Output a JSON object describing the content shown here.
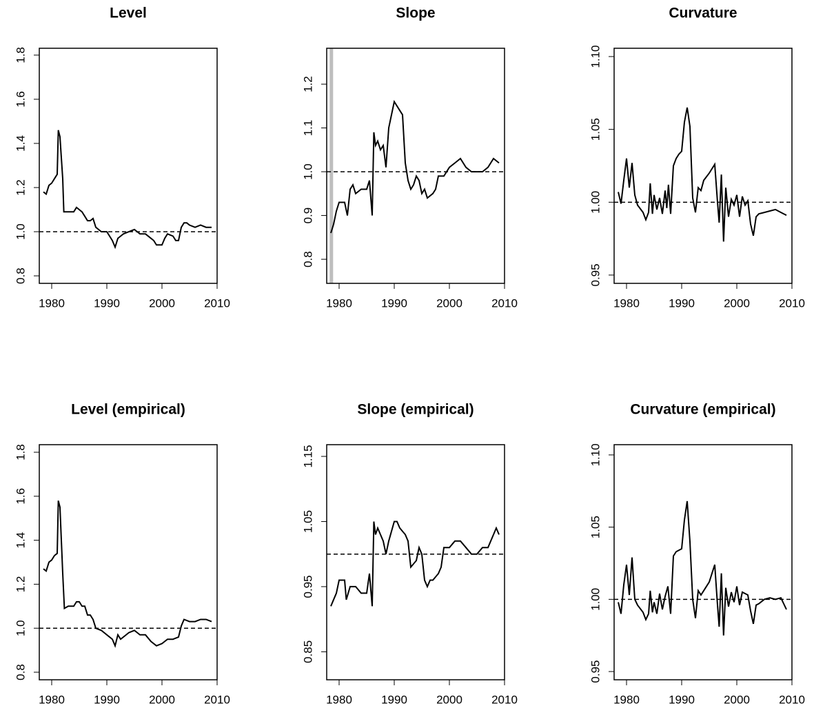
{
  "chart_data": [
    {
      "type": "line",
      "title": "Level",
      "color": "#000000",
      "x": [
        1978.5,
        1979,
        1979.5,
        1980,
        1980.5,
        1981,
        1981.2,
        1981.5,
        1982,
        1982.2,
        1983,
        1984,
        1984.5,
        1985,
        1985.5,
        1986,
        1986.5,
        1987,
        1987.5,
        1988,
        1988.5,
        1989,
        1990,
        1990.5,
        1991,
        1991.5,
        1992,
        1992.5,
        1993,
        1994,
        1995,
        1996,
        1997,
        1998,
        1998.5,
        1999,
        2000,
        2000.5,
        2001,
        2002,
        2002.5,
        2003,
        2003.5,
        2004,
        2004.5,
        2005,
        2006,
        2007,
        2008,
        2009
      ],
      "values": [
        1.18,
        1.17,
        1.21,
        1.22,
        1.24,
        1.26,
        1.46,
        1.43,
        1.24,
        1.09,
        1.09,
        1.09,
        1.11,
        1.1,
        1.09,
        1.07,
        1.05,
        1.05,
        1.06,
        1.02,
        1.01,
        1.0,
        1.0,
        0.98,
        0.96,
        0.93,
        0.97,
        0.98,
        0.99,
        1.0,
        1.01,
        0.99,
        0.99,
        0.97,
        0.96,
        0.94,
        0.94,
        0.97,
        0.99,
        0.98,
        0.96,
        0.96,
        1.02,
        1.04,
        1.04,
        1.03,
        1.02,
        1.03,
        1.02,
        1.02
      ],
      "hlines": [
        1
      ],
      "xlim": [
        1977.75,
        2010
      ],
      "xticks": [
        1980,
        1990,
        2000,
        2010
      ],
      "ylim": [
        0.766,
        1.831
      ],
      "yticks": [
        0.8,
        {
          "value": 1,
          "label": "1.0"
        },
        1.2,
        1.4,
        1.6,
        1.8
      ]
    },
    {
      "type": "line",
      "title": "Slope",
      "color": "#000000",
      "x": [
        1978.5,
        1979,
        1979.5,
        1980,
        1981,
        1981.5,
        1982,
        1982.5,
        1983,
        1984,
        1985,
        1985.5,
        1986,
        1986.3,
        1986.6,
        1987,
        1987.5,
        1988,
        1988.5,
        1989,
        1989.5,
        1990,
        1990.5,
        1991,
        1991.5,
        1992,
        1992.5,
        1993,
        1993.5,
        1994,
        1994.5,
        1995,
        1995.5,
        1996,
        1997,
        1997.5,
        1998,
        1999,
        2000,
        2001,
        2002,
        2003,
        2004,
        2005,
        2006,
        2007,
        2008,
        2009
      ],
      "values": [
        0.86,
        0.88,
        0.91,
        0.93,
        0.93,
        0.9,
        0.96,
        0.97,
        0.95,
        0.96,
        0.96,
        0.98,
        0.9,
        1.09,
        1.06,
        1.07,
        1.05,
        1.06,
        1.01,
        1.1,
        1.13,
        1.16,
        1.15,
        1.14,
        1.13,
        1.02,
        0.98,
        0.96,
        0.97,
        0.99,
        0.98,
        0.95,
        0.96,
        0.94,
        0.95,
        0.96,
        0.99,
        0.99,
        1.01,
        1.02,
        1.03,
        1.01,
        1.0,
        1.0,
        1.0,
        1.01,
        1.03,
        1.02
      ],
      "hlines": [
        1
      ],
      "vlines": [
        {
          "x": 1978.6,
          "color": "#bebebe"
        }
      ],
      "xlim": [
        1977.75,
        2010
      ],
      "xticks": [
        1980,
        1990,
        2000,
        2010
      ],
      "ylim": [
        0.745,
        1.282
      ],
      "yticks": [
        0.8,
        0.9,
        {
          "value": 1,
          "label": "1.0"
        },
        1.1,
        1.2
      ]
    },
    {
      "type": "line",
      "title": "Curvature",
      "color": "#000000",
      "x": [
        1978.5,
        1979,
        1979.5,
        1980,
        1980.5,
        1981,
        1981.5,
        1982,
        1983,
        1983.5,
        1984,
        1984.3,
        1984.7,
        1985,
        1985.5,
        1986,
        1986.5,
        1987,
        1987.3,
        1987.6,
        1988,
        1988.5,
        1989,
        1989.5,
        1990,
        1990.5,
        1991,
        1991.5,
        1992,
        1992.5,
        1993,
        1993.5,
        1994,
        1995,
        1996,
        1996.5,
        1996.8,
        1997.2,
        1997.6,
        1998,
        1998.5,
        1999,
        1999.5,
        2000,
        2000.5,
        2001,
        2001.5,
        2002,
        2002.5,
        2003,
        2003.5,
        2004,
        2005,
        2006,
        2007,
        2008,
        2009
      ],
      "values": [
        1.007,
        0.999,
        1.015,
        1.03,
        1.01,
        1.027,
        1.005,
        0.998,
        0.993,
        0.988,
        0.993,
        1.013,
        0.992,
        1.005,
        0.995,
        1.003,
        0.992,
        1.008,
        0.996,
        1.012,
        0.992,
        1.025,
        1.03,
        1.033,
        1.035,
        1.055,
        1.065,
        1.052,
        1.003,
        0.993,
        1.01,
        1.008,
        1.015,
        1.02,
        1.026,
        1.0,
        0.986,
        1.019,
        0.973,
        1.01,
        0.99,
        1.002,
        0.998,
        1.005,
        0.99,
        1.004,
        0.998,
        1.001,
        0.985,
        0.977,
        0.99,
        0.992,
        0.993,
        0.994,
        0.995,
        0.993,
        0.991
      ],
      "hlines": [
        1
      ],
      "xlim": [
        1977.75,
        2010
      ],
      "xticks": [
        1980,
        1990,
        2000,
        2010
      ],
      "ylim": [
        0.9443,
        1.1057
      ],
      "yticks": [
        0.95,
        {
          "value": 1,
          "label": "1.00"
        },
        1.05,
        {
          "value": 1.1,
          "label": "1.10"
        }
      ]
    },
    {
      "type": "line",
      "title": "Level (empirical)",
      "color": "#000000",
      "x": [
        1978.5,
        1979,
        1979.5,
        1980,
        1980.5,
        1981,
        1981.2,
        1981.5,
        1982,
        1982.3,
        1983,
        1984,
        1984.5,
        1985,
        1985.5,
        1986,
        1986.5,
        1987,
        1987.5,
        1988,
        1989,
        1990,
        1991,
        1991.5,
        1992,
        1992.5,
        1993,
        1994,
        1995,
        1996,
        1997,
        1998,
        1999,
        2000,
        2001,
        2002,
        2003,
        2003.5,
        2004,
        2005,
        2006,
        2007,
        2008,
        2009
      ],
      "values": [
        1.27,
        1.26,
        1.3,
        1.31,
        1.33,
        1.34,
        1.58,
        1.55,
        1.25,
        1.09,
        1.1,
        1.1,
        1.12,
        1.12,
        1.1,
        1.1,
        1.06,
        1.06,
        1.04,
        1.0,
        0.99,
        0.97,
        0.95,
        0.92,
        0.97,
        0.95,
        0.96,
        0.98,
        0.99,
        0.97,
        0.97,
        0.94,
        0.92,
        0.93,
        0.95,
        0.95,
        0.96,
        1.01,
        1.04,
        1.03,
        1.03,
        1.04,
        1.04,
        1.03
      ],
      "hlines": [
        1
      ],
      "xlim": [
        1977.75,
        2010
      ],
      "xticks": [
        1980,
        1990,
        2000,
        2010
      ],
      "ylim": [
        0.7656,
        1.8344
      ],
      "yticks": [
        0.8,
        {
          "value": 1,
          "label": "1.0"
        },
        1.2,
        1.4,
        1.6,
        1.8
      ]
    },
    {
      "type": "line",
      "title": "Slope (empirical)",
      "color": "#000000",
      "x": [
        1978.5,
        1979,
        1979.5,
        1980,
        1981,
        1981.3,
        1982,
        1983,
        1984,
        1985,
        1985.5,
        1986,
        1986.3,
        1986.6,
        1987,
        1987.5,
        1988,
        1988.5,
        1989,
        1990,
        1990.5,
        1991,
        1992,
        1992.5,
        1993,
        1994,
        1994.5,
        1995,
        1995.5,
        1996,
        1996.5,
        1997,
        1998,
        1998.5,
        1999,
        2000,
        2001,
        2002,
        2003,
        2004,
        2005,
        2006,
        2007,
        2008,
        2008.5,
        2009
      ],
      "values": [
        0.92,
        0.93,
        0.94,
        0.96,
        0.96,
        0.93,
        0.95,
        0.95,
        0.94,
        0.94,
        0.97,
        0.92,
        1.05,
        1.03,
        1.04,
        1.03,
        1.02,
        1.0,
        1.02,
        1.05,
        1.05,
        1.04,
        1.03,
        1.02,
        0.98,
        0.99,
        1.01,
        1.0,
        0.96,
        0.95,
        0.96,
        0.96,
        0.97,
        0.98,
        1.01,
        1.01,
        1.02,
        1.02,
        1.01,
        1.0,
        1.0,
        1.01,
        1.01,
        1.03,
        1.04,
        1.03
      ],
      "hlines": [
        1
      ],
      "xlim": [
        1977.75,
        2010
      ],
      "xticks": [
        1980,
        1990,
        2000,
        2010
      ],
      "ylim": [
        0.807,
        1.168
      ],
      "yticks": [
        0.85,
        0.95,
        1.05,
        1.15
      ]
    },
    {
      "type": "line",
      "title": "Curvature (empirical)",
      "color": "#000000",
      "x": [
        1978.5,
        1979,
        1979.5,
        1980,
        1980.5,
        1981,
        1981.5,
        1982,
        1983,
        1983.5,
        1984,
        1984.3,
        1984.7,
        1985,
        1985.5,
        1986,
        1986.5,
        1987,
        1987.5,
        1988,
        1988.5,
        1989,
        1990,
        1990.5,
        1991,
        1991.5,
        1992,
        1992.5,
        1993,
        1993.5,
        1994,
        1995,
        1996,
        1996.5,
        1996.8,
        1997.2,
        1997.6,
        1998,
        1998.5,
        1999,
        1999.5,
        2000,
        2000.5,
        2001,
        2002,
        2002.5,
        2003,
        2003.5,
        2004,
        2005,
        2006,
        2007,
        2008,
        2009
      ],
      "values": [
        0.998,
        0.99,
        1.01,
        1.024,
        1.003,
        1.029,
        1.0,
        0.996,
        0.991,
        0.986,
        0.99,
        1.006,
        0.991,
        0.998,
        0.99,
        1.004,
        0.993,
        1.002,
        1.009,
        0.99,
        1.03,
        1.033,
        1.035,
        1.055,
        1.068,
        1.04,
        1.0,
        0.987,
        1.006,
        1.003,
        1.006,
        1.012,
        1.024,
        0.996,
        0.981,
        1.018,
        0.975,
        1.008,
        0.995,
        1.005,
        0.998,
        1.009,
        0.996,
        1.005,
        1.003,
        0.992,
        0.983,
        0.996,
        0.997,
        1.0,
        1.001,
        1.0,
        1.001,
        0.993
      ],
      "hlines": [
        1
      ],
      "xlim": [
        1977.75,
        2010
      ],
      "xticks": [
        1980,
        1990,
        2000,
        2010
      ],
      "ylim": [
        0.9443,
        1.1071
      ],
      "yticks": [
        0.95,
        {
          "value": 1,
          "label": "1.00"
        },
        1.05,
        {
          "value": 1.1,
          "label": "1.10"
        }
      ]
    }
  ]
}
